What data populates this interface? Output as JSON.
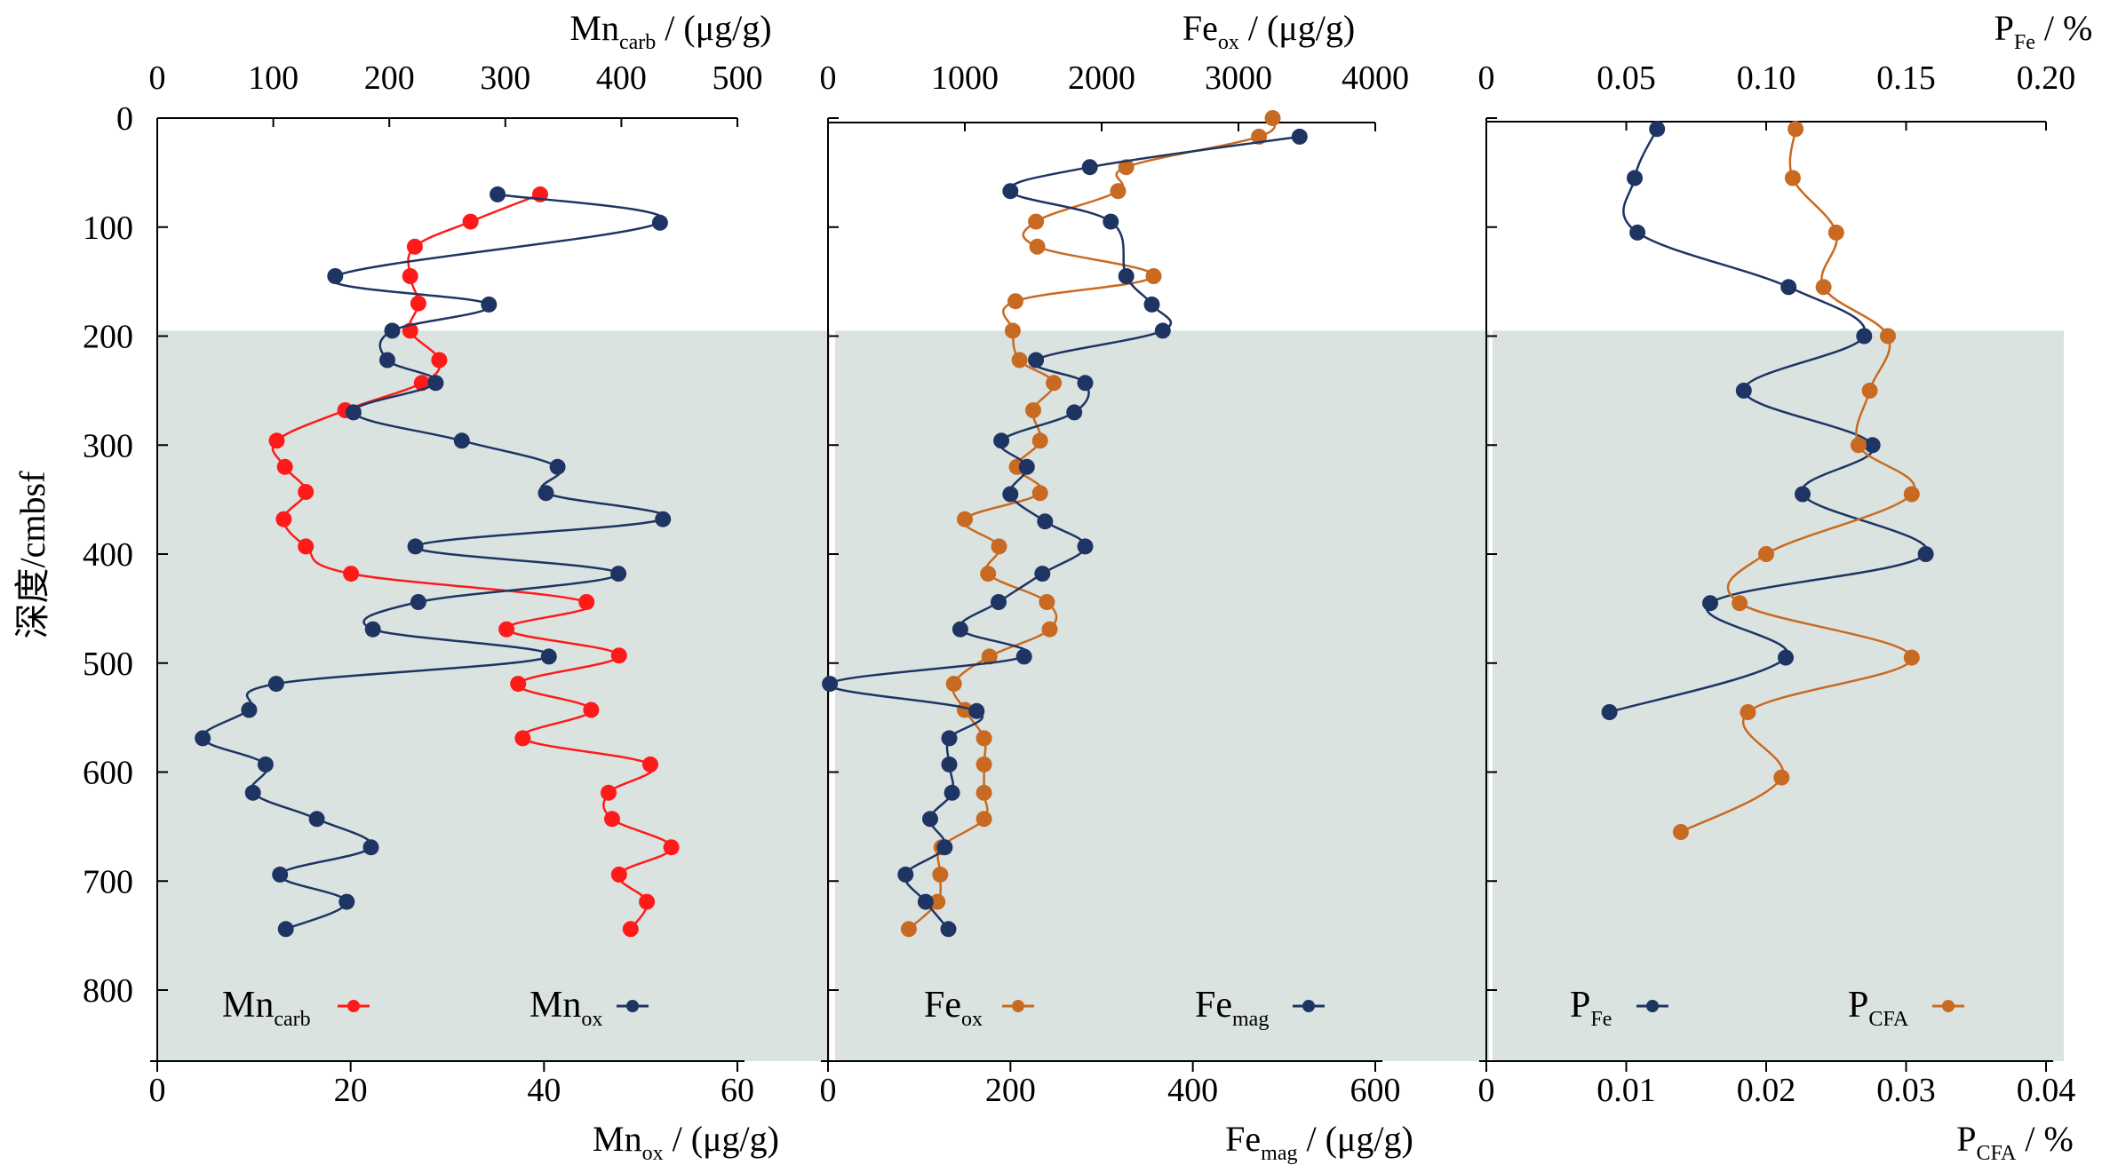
{
  "colors": {
    "red": "#ff1a1a",
    "navy": "#1e3563",
    "orange": "#c96a22",
    "shade": "#dbe3e1"
  },
  "depth_axis": {
    "label": "深度/cmbsf",
    "range": [
      0,
      860
    ],
    "ticks": [
      0,
      100,
      200,
      300,
      400,
      500,
      600,
      700,
      800
    ],
    "shade_from": 195
  },
  "panels": [
    {
      "id": "mn",
      "top_axis": {
        "base": "Mn",
        "sub": "carb",
        "tail": " / (μg/g)",
        "range": [
          0,
          500
        ],
        "ticks": [
          0,
          100,
          200,
          300,
          400,
          500
        ]
      },
      "bottom_axis": {
        "base": "Mn",
        "sub": "ox",
        "tail": " / (μg/g)",
        "range": [
          0,
          60
        ],
        "ticks": [
          0,
          20,
          40,
          60
        ]
      },
      "legend": [
        {
          "base": "Mn",
          "sub": "carb",
          "color": "red",
          "pos": "left"
        },
        {
          "base": "Mn",
          "sub": "ox",
          "color": "navy",
          "pos": "right"
        }
      ]
    },
    {
      "id": "fe",
      "top_axis": {
        "base": "Fe",
        "sub": "ox",
        "tail": " / (μg/g)",
        "range": [
          0,
          4000
        ],
        "ticks": [
          0,
          1000,
          2000,
          3000,
          4000
        ]
      },
      "bottom_axis": {
        "base": "Fe",
        "sub": "mag",
        "tail": " / (μg/g)",
        "range": [
          0,
          600
        ],
        "ticks": [
          0,
          200,
          400,
          600
        ]
      },
      "legend": [
        {
          "base": "Fe",
          "sub": "ox",
          "color": "orange",
          "pos": "left"
        },
        {
          "base": "Fe",
          "sub": "mag",
          "color": "navy",
          "pos": "right"
        }
      ]
    },
    {
      "id": "p",
      "top_axis": {
        "base": "P",
        "sub": "Fe",
        "tail": " / %",
        "range": [
          0,
          0.2
        ],
        "ticks": [
          "0",
          "0.05",
          "0.10",
          "0.15",
          "0.20"
        ]
      },
      "bottom_axis": {
        "base": "P",
        "sub": "CFA",
        "tail": " / %",
        "range": [
          0,
          0.04
        ],
        "ticks": [
          "0",
          "0.01",
          "0.02",
          "0.03",
          "0.04"
        ]
      },
      "legend": [
        {
          "base": "P",
          "sub": "Fe",
          "color": "navy",
          "pos": "left"
        },
        {
          "base": "P",
          "sub": "CFA",
          "color": "orange",
          "pos": "right"
        }
      ]
    }
  ],
  "chart_data": {
    "type": "line",
    "orientation": "depth-profile",
    "y_axis": "depth (cmbsf)",
    "series": [
      {
        "name": "Mncarb",
        "panel": "mn",
        "axis": "top",
        "color": "red",
        "points": [
          [
            330,
            70
          ],
          [
            270,
            95
          ],
          [
            222,
            118
          ],
          [
            218,
            145
          ],
          [
            225,
            170
          ],
          [
            218,
            195
          ],
          [
            243,
            222
          ],
          [
            228,
            243
          ],
          [
            162,
            268
          ],
          [
            103,
            296
          ],
          [
            110,
            320
          ],
          [
            128,
            343
          ],
          [
            109,
            368
          ],
          [
            128,
            393
          ],
          [
            167,
            418
          ],
          [
            370,
            444
          ],
          [
            301,
            469
          ],
          [
            398,
            493
          ],
          [
            311,
            519
          ],
          [
            374,
            543
          ],
          [
            315,
            569
          ],
          [
            425,
            593
          ],
          [
            389,
            619
          ],
          [
            392,
            643
          ],
          [
            443,
            669
          ],
          [
            398,
            694
          ],
          [
            422,
            719
          ],
          [
            408,
            744
          ]
        ]
      },
      {
        "name": "Mnox",
        "panel": "mn",
        "axis": "bottom",
        "color": "navy",
        "points": [
          [
            35.2,
            70
          ],
          [
            52,
            96
          ],
          [
            18.4,
            145
          ],
          [
            34.3,
            171
          ],
          [
            24.3,
            195
          ],
          [
            23.8,
            222
          ],
          [
            28.8,
            243
          ],
          [
            20.3,
            270
          ],
          [
            31.5,
            296
          ],
          [
            41.4,
            320
          ],
          [
            40.2,
            344
          ],
          [
            52.3,
            368
          ],
          [
            26.7,
            393
          ],
          [
            47.7,
            418
          ],
          [
            27.0,
            444
          ],
          [
            22.3,
            469
          ],
          [
            40.5,
            494
          ],
          [
            12.3,
            519
          ],
          [
            9.5,
            543
          ],
          [
            4.7,
            569
          ],
          [
            11.2,
            593
          ],
          [
            9.9,
            619
          ],
          [
            16.5,
            643
          ],
          [
            22.1,
            669
          ],
          [
            12.7,
            694
          ],
          [
            19.6,
            719
          ],
          [
            13.3,
            744
          ]
        ]
      },
      {
        "name": "Feox",
        "panel": "fe",
        "axis": "top",
        "color": "orange",
        "points": [
          [
            3250,
            0
          ],
          [
            3150,
            17
          ],
          [
            2180,
            45
          ],
          [
            2120,
            67
          ],
          [
            1520,
            95
          ],
          [
            1530,
            118
          ],
          [
            2380,
            145
          ],
          [
            1370,
            168
          ],
          [
            1350,
            195
          ],
          [
            1400,
            222
          ],
          [
            1650,
            243
          ],
          [
            1500,
            268
          ],
          [
            1550,
            296
          ],
          [
            1380,
            320
          ],
          [
            1550,
            344
          ],
          [
            1000,
            368
          ],
          [
            1250,
            393
          ],
          [
            1170,
            418
          ],
          [
            1600,
            444
          ],
          [
            1620,
            469
          ],
          [
            1180,
            494
          ],
          [
            920,
            519
          ],
          [
            1000,
            543
          ],
          [
            1140,
            569
          ],
          [
            1140,
            593
          ],
          [
            1140,
            619
          ],
          [
            1140,
            643
          ],
          [
            830,
            669
          ],
          [
            820,
            694
          ],
          [
            800,
            719
          ],
          [
            590,
            744
          ]
        ]
      },
      {
        "name": "Femag",
        "panel": "fe",
        "axis": "bottom",
        "color": "navy",
        "points": [
          [
            517,
            17
          ],
          [
            287,
            45
          ],
          [
            200,
            67
          ],
          [
            310,
            95
          ],
          [
            327,
            145
          ],
          [
            355,
            171
          ],
          [
            367,
            195
          ],
          [
            228,
            222
          ],
          [
            282,
            243
          ],
          [
            270,
            270
          ],
          [
            190,
            296
          ],
          [
            218,
            320
          ],
          [
            200,
            345
          ],
          [
            238,
            370
          ],
          [
            282,
            393
          ],
          [
            235,
            418
          ],
          [
            187,
            444
          ],
          [
            145,
            469
          ],
          [
            215,
            494
          ],
          [
            2,
            519
          ],
          [
            163,
            544
          ],
          [
            133,
            569
          ],
          [
            133,
            593
          ],
          [
            136,
            619
          ],
          [
            112,
            643
          ],
          [
            128,
            669
          ],
          [
            85,
            694
          ],
          [
            107,
            719
          ],
          [
            132,
            744
          ]
        ]
      },
      {
        "name": "PFe",
        "panel": "p",
        "axis": "top",
        "color": "navy",
        "points": [
          [
            0.061,
            10
          ],
          [
            0.053,
            55
          ],
          [
            0.054,
            105
          ],
          [
            0.108,
            155
          ],
          [
            0.135,
            200
          ],
          [
            0.092,
            250
          ],
          [
            0.138,
            300
          ],
          [
            0.113,
            345
          ],
          [
            0.157,
            400
          ],
          [
            0.08,
            445
          ],
          [
            0.107,
            495
          ],
          [
            0.044,
            545
          ]
        ]
      },
      {
        "name": "PCFA",
        "panel": "p",
        "axis": "bottom",
        "color": "orange",
        "points": [
          [
            0.0221,
            10
          ],
          [
            0.0219,
            55
          ],
          [
            0.025,
            105
          ],
          [
            0.0241,
            155
          ],
          [
            0.0287,
            200
          ],
          [
            0.0274,
            250
          ],
          [
            0.0266,
            300
          ],
          [
            0.0304,
            345
          ],
          [
            0.02,
            400
          ],
          [
            0.0181,
            445
          ],
          [
            0.0304,
            495
          ],
          [
            0.0187,
            545
          ],
          [
            0.0211,
            605
          ],
          [
            0.0139,
            655
          ]
        ]
      }
    ]
  }
}
